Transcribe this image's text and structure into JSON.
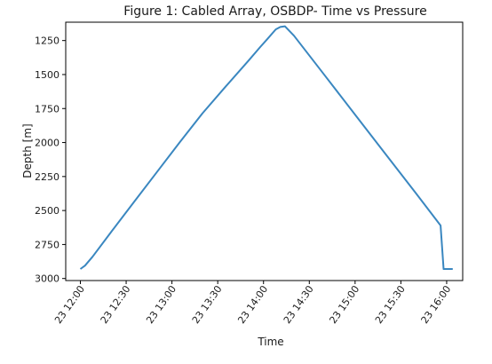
{
  "chart_data": {
    "type": "line",
    "title": "Figure 1: Cabled Array, OSBDP- Time vs Pressure",
    "xlabel": "Time",
    "ylabel": "Depth [m]",
    "x_tick_labels": [
      "23 12:00",
      "23 12:30",
      "23 13:00",
      "23 13:30",
      "23 14:00",
      "23 14:30",
      "23 15:00",
      "23 15:30",
      "23 16:00"
    ],
    "y_tick_labels": [
      "1250",
      "1500",
      "1750",
      "2000",
      "2250",
      "2500",
      "2750",
      "3000"
    ],
    "x_tick_minutes": [
      0,
      30,
      60,
      90,
      120,
      150,
      180,
      210,
      240
    ],
    "y_ticks": [
      1250,
      1500,
      1750,
      2000,
      2250,
      2500,
      2750,
      3000
    ],
    "xlim_minutes": [
      -9.6,
      250.5
    ],
    "ylim": [
      3015,
      1115
    ],
    "y_inverted": true,
    "grid": false,
    "color": "#3a87c0",
    "series": [
      {
        "x_minutes": [
          0,
          3,
          8,
          20,
          35,
          50,
          65,
          80,
          95,
          110,
          118,
          122,
          128,
          131,
          134,
          140,
          160,
          180,
          200,
          220,
          236,
          238,
          244
        ],
        "y": [
          2930,
          2905,
          2840,
          2660,
          2440,
          2220,
          2000,
          1785,
          1590,
          1400,
          1295,
          1245,
          1168,
          1150,
          1145,
          1215,
          1505,
          1795,
          2085,
          2375,
          2610,
          2930,
          2930
        ]
      }
    ]
  }
}
